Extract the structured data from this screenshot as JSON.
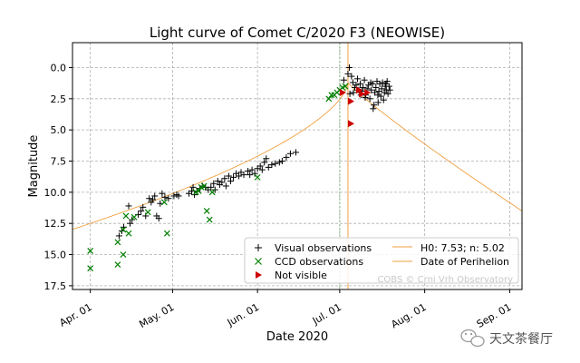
{
  "chart_data": {
    "type": "scatter",
    "title": "Light curve of Comet C/2020 F3 (NEOWISE)",
    "xlabel": "Date 2020",
    "ylabel": "Magnitude",
    "xaxis_unit": "day of year 2020",
    "xlim": [
      85.5,
      249.5
    ],
    "ylim": [
      17.8,
      -2.0
    ],
    "x_ticks": [
      {
        "day": 92,
        "label": "Apr. 01"
      },
      {
        "day": 122,
        "label": "May. 01"
      },
      {
        "day": 153,
        "label": "Jun. 01"
      },
      {
        "day": 183,
        "label": "Jul. 01"
      },
      {
        "day": 214,
        "label": "Aug. 01"
      },
      {
        "day": 245,
        "label": "Sep. 01"
      }
    ],
    "y_ticks": [
      {
        "value": 0,
        "label": "0.0"
      },
      {
        "value": 2.5,
        "label": "2.5"
      },
      {
        "value": 5,
        "label": "5.0"
      },
      {
        "value": 7.5,
        "label": "7.5"
      },
      {
        "value": 10,
        "label": "10.0"
      },
      {
        "value": 12.5,
        "label": "12.5"
      },
      {
        "value": 15,
        "label": "15.0"
      },
      {
        "value": 17.5,
        "label": "17.5"
      }
    ],
    "grid": true,
    "legend": {
      "position": "lower-right",
      "entries": {
        "visual": "Visual observations",
        "ccd": "CCD observations",
        "notvisible": "Not visible",
        "model": "H0: 7.53; n: 5.02",
        "perihelion": "Date of Perihelion"
      }
    },
    "perihelion_day": 186,
    "reference_line_day": 183,
    "model": {
      "H0": 7.53,
      "n": 5.02,
      "peak_day": 186,
      "peak_mag": 1.2
    },
    "series": [
      {
        "name": "Visual observations",
        "marker": "plus",
        "color": "#000000",
        "points": [
          [
            102.5,
            13.5
          ],
          [
            103.5,
            13.1
          ],
          [
            104.2,
            12.8
          ],
          [
            106,
            11.1
          ],
          [
            106.5,
            12.5
          ],
          [
            107.2,
            12.2
          ],
          [
            109.5,
            11.8
          ],
          [
            110.5,
            11.5
          ],
          [
            111.2,
            11.2
          ],
          [
            112.2,
            11.9
          ],
          [
            113.5,
            10.5
          ],
          [
            114.2,
            10.8
          ],
          [
            114.8,
            10.6
          ],
          [
            115.5,
            10.3
          ],
          [
            116.2,
            11.9
          ],
          [
            117,
            12.1
          ],
          [
            117.5,
            10.9
          ],
          [
            118.2,
            10.1
          ],
          [
            119.2,
            10.4
          ],
          [
            120.5,
            10.5
          ],
          [
            122.5,
            10.3
          ],
          [
            123.5,
            10.2
          ],
          [
            124.2,
            10.3
          ],
          [
            128,
            10.1
          ],
          [
            129,
            9.9
          ],
          [
            129.5,
            9.6
          ],
          [
            130,
            10.2
          ],
          [
            131,
            9.9
          ],
          [
            132,
            9.7
          ],
          [
            133,
            9.5
          ],
          [
            134,
            9.6
          ],
          [
            135,
            9.8
          ],
          [
            136,
            9.6
          ],
          [
            137,
            9.3
          ],
          [
            137.5,
            9.8
          ],
          [
            138.5,
            9.1
          ],
          [
            139.2,
            9.4
          ],
          [
            140,
            9.2
          ],
          [
            141,
            8.9
          ],
          [
            141.5,
            9.5
          ],
          [
            142.5,
            8.7
          ],
          [
            143.2,
            9.1
          ],
          [
            144.2,
            8.8
          ],
          [
            145.2,
            8.5
          ],
          [
            146.2,
            8.7
          ],
          [
            147,
            8.4
          ],
          [
            148,
            8.6
          ],
          [
            149.5,
            8.3
          ],
          [
            150.2,
            8.6
          ],
          [
            151,
            8.2
          ],
          [
            152,
            8.5
          ],
          [
            153,
            8.1
          ],
          [
            154,
            7.9
          ],
          [
            154.7,
            8.2
          ],
          [
            155.5,
            7.6
          ],
          [
            156.2,
            7.3
          ],
          [
            157,
            8.0
          ],
          [
            158.2,
            7.8
          ],
          [
            159.5,
            7.7
          ],
          [
            161,
            7.6
          ],
          [
            162,
            7.5
          ],
          [
            163.5,
            7.2
          ],
          [
            165,
            6.9
          ],
          [
            167,
            6.8
          ],
          [
            184.5,
            1.0
          ],
          [
            186,
            0.5
          ],
          [
            186.5,
            0.0
          ],
          [
            187.3,
            0.7
          ],
          [
            187.8,
            1.2
          ],
          [
            188.5,
            1.6
          ],
          [
            189,
            1.4
          ],
          [
            189.5,
            0.9
          ],
          [
            190,
            1.8
          ],
          [
            190.5,
            1.3
          ],
          [
            191,
            1.9
          ],
          [
            191.5,
            1.6
          ],
          [
            192,
            1.0
          ],
          [
            192.5,
            2.2
          ],
          [
            193,
            1.7
          ],
          [
            193.5,
            1.4
          ],
          [
            194,
            2.5
          ],
          [
            194.5,
            1.8
          ],
          [
            195,
            1.3
          ],
          [
            195.5,
            3.0
          ],
          [
            195.8,
            2.0
          ],
          [
            196.2,
            1.6
          ],
          [
            196.6,
            1.1
          ],
          [
            197,
            2.8
          ],
          [
            197.3,
            1.9
          ],
          [
            197.6,
            1.3
          ],
          [
            198,
            2.3
          ],
          [
            198.3,
            1.7
          ],
          [
            198.6,
            1.2
          ],
          [
            199,
            2.6
          ],
          [
            199.3,
            2.0
          ],
          [
            199.6,
            1.5
          ],
          [
            200,
            1.8
          ],
          [
            200.3,
            1.1
          ],
          [
            200.6,
            2.1
          ],
          [
            201,
            1.5
          ],
          [
            201.3,
            1.8
          ],
          [
            188,
            2.0
          ],
          [
            192.3,
            2.4
          ],
          [
            195.2,
            3.3
          ],
          [
            196.9,
            2.2
          ],
          [
            199.9,
            1.3
          ],
          [
            186.7,
            2.1
          ],
          [
            190.7,
            2.2
          ],
          [
            194.3,
            1.2
          ]
        ]
      },
      {
        "name": "CCD observations",
        "marker": "x",
        "color": "#008000",
        "points": [
          [
            92,
            14.7
          ],
          [
            92,
            16.1
          ],
          [
            102,
            14.0
          ],
          [
            102,
            15.8
          ],
          [
            104,
            13.0
          ],
          [
            104,
            15.0
          ],
          [
            105,
            11.9
          ],
          [
            106,
            13.3
          ],
          [
            108,
            12.0
          ],
          [
            113,
            11.6
          ],
          [
            119,
            10.8
          ],
          [
            120,
            13.3
          ],
          [
            130.5,
            10.0
          ],
          [
            131.5,
            9.9
          ],
          [
            132.5,
            9.6
          ],
          [
            133.5,
            9.5
          ],
          [
            134.5,
            11.5
          ],
          [
            135.5,
            12.2
          ],
          [
            136.5,
            10.0
          ],
          [
            153,
            8.8
          ],
          [
            179,
            2.5
          ],
          [
            180,
            2.2
          ],
          [
            181,
            2.2
          ],
          [
            182,
            2.0
          ],
          [
            183,
            1.8
          ],
          [
            184,
            1.6
          ],
          [
            185,
            1.5
          ]
        ]
      },
      {
        "name": "Not visible",
        "marker": "triangle-right",
        "color": "#cc0000",
        "points": [
          [
            184,
            2.0
          ],
          [
            187,
            2.7
          ],
          [
            187,
            4.5
          ],
          [
            190,
            1.8
          ],
          [
            191,
            2.1
          ],
          [
            193,
            2.0
          ]
        ]
      }
    ]
  },
  "watermark": {
    "chart_credit": "COBS © Crni Vrh Observatory",
    "logo_text": "天文茶餐厅"
  }
}
